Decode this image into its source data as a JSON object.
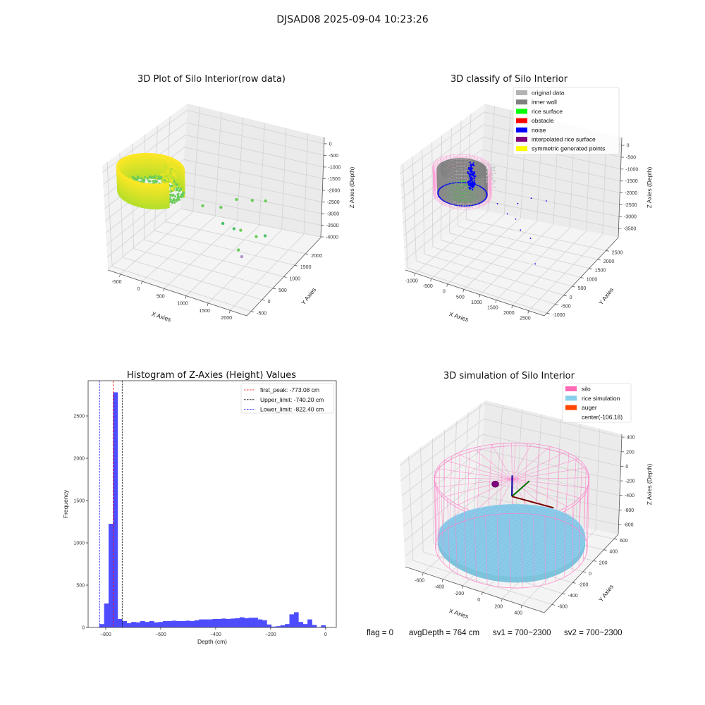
{
  "suptitle": "DJSAD08 2025-09-04 10:23:26",
  "footer": {
    "flag": "flag = 0",
    "avg_depth": "avgDepth = 764 cm",
    "sv1": "sv1 = 700~2300",
    "sv2": "sv2 = 700~2300"
  },
  "chart_data": [
    {
      "type": "scatter",
      "projection": "3d",
      "title": "3D Plot of Silo Interior(row data)",
      "xlabel": "X Axies",
      "ylabel": "Y Axies",
      "zlabel": "Z Axies (Depth)",
      "xlim": [
        -780,
        2380
      ],
      "ylim": [
        -700,
        2700
      ],
      "zlim": [
        -4030,
        270
      ],
      "xticks": [
        -500,
        0,
        500,
        1000,
        1500,
        2000
      ],
      "yticks": [
        -500,
        0,
        500,
        1000,
        1500,
        2000
      ],
      "zticks": [
        0,
        -500,
        -1000,
        -1500,
        -2000,
        -2500,
        -3000,
        -3500,
        -4000
      ],
      "ring": {
        "center": [
          -106,
          18
        ],
        "radius": 650,
        "z_top": 0,
        "z_bottom": -1000,
        "surface_z": -900
      },
      "colors": {
        "top": "#fde725",
        "mid": "#b5de2b",
        "floor": "#6ccd5a"
      },
      "outliers": [
        [
          900,
          300,
          -1200
        ],
        [
          1100,
          700,
          -1500
        ],
        [
          1400,
          800,
          -1100
        ],
        [
          1600,
          1100,
          -1300
        ],
        [
          1800,
          1300,
          -1400
        ],
        [
          1300,
          400,
          -1800
        ],
        [
          1500,
          500,
          -2000
        ],
        [
          1600,
          600,
          -2100
        ],
        [
          1900,
          700,
          -2300
        ],
        [
          1700,
          300,
          -2600
        ],
        [
          2000,
          900,
          -2400
        ],
        [
          1750,
          350,
          -2900
        ]
      ],
      "outlier_colors": [
        "#6ccd5a",
        "#6ccd5a",
        "#6ccd5a",
        "#6ccd5a",
        "#6ccd5a",
        "#4cc26c",
        "#4cc26c",
        "#6ccd5a",
        "#6ccd5a",
        "#6ccd5a",
        "#4cc26c",
        "#b293c8"
      ]
    },
    {
      "type": "scatter",
      "projection": "3d",
      "title": "3D classify of Silo Interior",
      "xlabel": "X Axies",
      "ylabel": "Y Axies",
      "zlabel": "Z Axies (Depth)",
      "xlim": [
        -1300,
        2980
      ],
      "ylim": [
        -1150,
        3220
      ],
      "zlim": [
        -3885,
        330
      ],
      "xticks": [
        -1000,
        -500,
        0,
        500,
        1000,
        1500,
        2000,
        2500
      ],
      "yticks": [
        -1000,
        -500,
        0,
        500,
        1000,
        1500,
        2000,
        2500
      ],
      "zticks": [
        0,
        -500,
        -1000,
        -1500,
        -2000,
        -2500,
        -3000,
        -3500
      ],
      "ring": {
        "center": [
          -106,
          18
        ],
        "radius": 650,
        "z_top": 0,
        "z_bottom": -1000,
        "surface_z": -900
      },
      "legend": [
        {
          "label": "original data",
          "color": "#b3b3b3"
        },
        {
          "label": "inner wall",
          "color": "#808080"
        },
        {
          "label": "rice surface",
          "color": "#00ff00"
        },
        {
          "label": "obstacle",
          "color": "#ff0000"
        },
        {
          "label": "noise",
          "color": "#0000ff"
        },
        {
          "label": "interpolated rice surface",
          "color": "#800080"
        },
        {
          "label": "symmetric generated points",
          "color": "#ffff00"
        }
      ],
      "outliers": [
        [
          800,
          300,
          -1200
        ],
        [
          1200,
          700,
          -1300
        ],
        [
          1500,
          900,
          -1100
        ],
        [
          1800,
          1200,
          -1300
        ],
        [
          1100,
          300,
          -1500
        ],
        [
          1300,
          400,
          -1700
        ],
        [
          1500,
          300,
          -2000
        ],
        [
          1700,
          500,
          -2400
        ],
        [
          1900,
          400,
          -3300
        ]
      ]
    },
    {
      "type": "bar",
      "title": "Histogram of Z-Axies (Height) Values",
      "xlabel": "Depth (cm)",
      "ylabel": "Frequency",
      "xlim": [
        -864,
        39
      ],
      "ylim": [
        0,
        2917
      ],
      "xticks": [
        -800,
        -600,
        -400,
        -200,
        0
      ],
      "yticks": [
        0,
        500,
        1000,
        1500,
        2000,
        2500
      ],
      "bin_start": -822.4,
      "bin_end": 0,
      "values": [
        40,
        283,
        1225,
        2780,
        100,
        75,
        50,
        65,
        60,
        75,
        65,
        75,
        60,
        65,
        75,
        75,
        80,
        75,
        75,
        80,
        75,
        85,
        95,
        95,
        95,
        100,
        100,
        105,
        100,
        105,
        110,
        120,
        110,
        115,
        115,
        95,
        85,
        35,
        10,
        15,
        25,
        40,
        155,
        180,
        65,
        40,
        95,
        30,
        5,
        25
      ],
      "bar_color": "#4d4dff",
      "vlines": [
        {
          "label": "first_peak: -773.08 cm",
          "x": -773.08,
          "color": "#ff0000"
        },
        {
          "label": "Upper_limit: -740.20 cm",
          "x": -740.2,
          "color": "#000000"
        },
        {
          "label": "Lower_limit: -822.40 cm",
          "x": -822.4,
          "color": "#0000ff"
        }
      ],
      "legend_position": "top-right"
    },
    {
      "type": "surface",
      "projection": "3d",
      "title": "3D simulation of Silo Interior",
      "xlabel": "X Axies",
      "ylabel": "Y Axies",
      "zlabel": "Z Axies (Depth)",
      "xlim": [
        -780,
        627
      ],
      "ylim": [
        -750,
        680
      ],
      "zlim": [
        -935,
        440
      ],
      "xticks": [
        -600,
        -400,
        -200,
        0,
        200,
        400
      ],
      "yticks": [
        -600,
        -400,
        -200,
        0,
        200,
        400,
        600
      ],
      "zticks": [
        400,
        200,
        0,
        -200,
        -400,
        -600,
        -800
      ],
      "silo": {
        "center": [
          -106,
          18
        ],
        "radius": 680,
        "z_top": 30,
        "z_bottom": -900
      },
      "rice_z": -764,
      "auger": [
        -330,
        120,
        -180
      ],
      "legend": [
        {
          "label": "silo",
          "color": "#ff69b4"
        },
        {
          "label": "rice simulation",
          "color": "#87ceeb"
        },
        {
          "label": "auger",
          "color": "#ff4500"
        },
        {
          "label": "center(-106,18)",
          "color": ""
        }
      ]
    }
  ]
}
